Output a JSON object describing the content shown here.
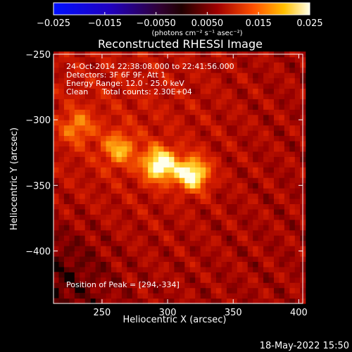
{
  "chart_data": {
    "type": "heatmap",
    "title": "Reconstructed RHESSI Image",
    "xlabel": "Heliocentric X (arcsec)",
    "ylabel": "Heliocentric Y (arcsec)",
    "xlim": [
      213,
      403
    ],
    "ylim": [
      -440,
      -250
    ],
    "xticks": [
      250,
      300,
      350,
      400
    ],
    "yticks": [
      -250,
      -300,
      -350,
      -400
    ],
    "colorbar": {
      "colormap": "red-temperature",
      "range": [
        -0.025,
        0.025
      ],
      "ticks": [
        "−0.025",
        "−0.015",
        "−0.0050",
        "0.0050",
        "0.015",
        "0.025"
      ],
      "unit_label": "(photons cm⁻² s⁻¹ asec⁻²)"
    },
    "annotations": {
      "time_range": "24-Oct-2014 22:38:08.000 to 22:41:56.000",
      "detectors": "Detectors: 3F 6F 9F, Att 1",
      "energy": "Energy Range: 12.0 - 25.0 keV",
      "algorithm": "Clean",
      "total_counts": "Total counts: 2.30E+04",
      "peak": "Position of Peak = [294,-334]"
    },
    "sources": [
      {
        "x": 294,
        "y": -334,
        "relative_intensity": 1.0
      },
      {
        "x": 319,
        "y": -341,
        "relative_intensity": 0.95
      },
      {
        "x": 263,
        "y": -322,
        "relative_intensity": 0.55
      },
      {
        "x": 231,
        "y": -305,
        "relative_intensity": 0.45
      }
    ]
  },
  "footer": {
    "date": "18-May-2022 15:50"
  }
}
